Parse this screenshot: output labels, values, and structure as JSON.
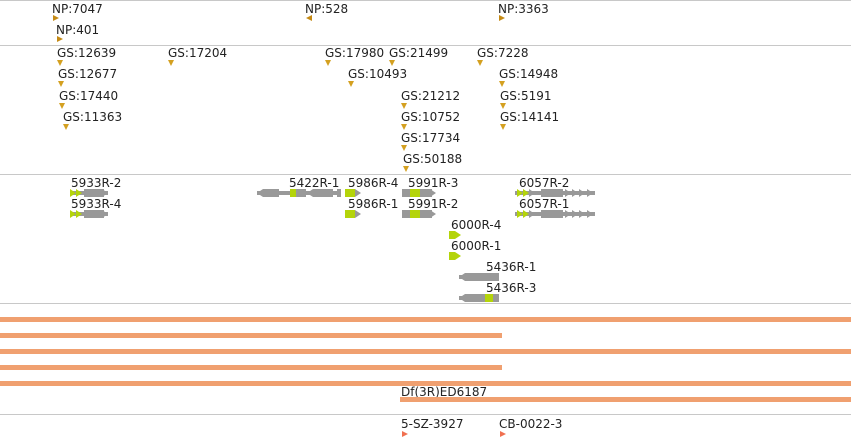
{
  "np_track": {
    "labels": [
      "NP:7047",
      "NP:401",
      "NP:528",
      "NP:3363"
    ]
  },
  "gs_track": {
    "labels": [
      "GS:12639",
      "GS:12677",
      "GS:17440",
      "GS:11363",
      "GS:17204",
      "GS:17980",
      "GS:10493",
      "GS:21499",
      "GS:21212",
      "GS:10752",
      "GS:17734",
      "GS:50188",
      "GS:7228",
      "GS:14948",
      "GS:5191",
      "GS:14141"
    ]
  },
  "transcripts": {
    "labels": [
      "5933R-2",
      "5933R-4",
      "5422R-1",
      "5986R-4",
      "5986R-1",
      "5991R-3",
      "5991R-2",
      "6057R-2",
      "6057R-1",
      "6000R-4",
      "6000R-1",
      "5436R-1",
      "5436R-3"
    ]
  },
  "deficiency": {
    "label": "Df(3R)ED6187"
  },
  "insertions": {
    "labels": [
      "5-SZ-3927",
      "CB-0022-3"
    ]
  },
  "colors": {
    "np": "#c58a15",
    "gs": "#d4a020",
    "exon": "#999999",
    "highlight": "#b4d40a",
    "deficiency": "#f0a070",
    "insertion": "#f07050"
  }
}
